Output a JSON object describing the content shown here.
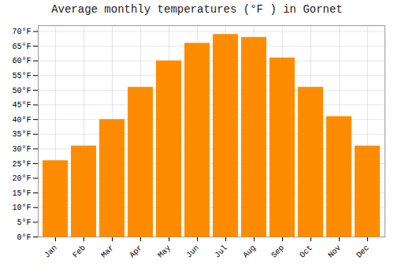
{
  "chart_data": {
    "type": "bar",
    "title": "Average monthly temperatures (°F ) in Gornet",
    "categories": [
      "Jan",
      "Feb",
      "Mar",
      "Apr",
      "May",
      "Jun",
      "Jul",
      "Aug",
      "Sep",
      "Oct",
      "Nov",
      "Dec"
    ],
    "values": [
      26,
      31,
      40,
      51,
      60,
      66,
      69,
      68,
      61,
      51,
      41,
      31
    ],
    "color": "#FF8C00",
    "ylim": [
      0,
      72
    ],
    "yticks": [
      {
        "value": 0,
        "label": "0°F"
      },
      {
        "value": 5,
        "label": "5°F"
      },
      {
        "value": 10,
        "label": "10°F"
      },
      {
        "value": 15,
        "label": "15°F"
      },
      {
        "value": 20,
        "label": "20°F"
      },
      {
        "value": 25,
        "label": "25°F"
      },
      {
        "value": 30,
        "label": "30°F"
      },
      {
        "value": 35,
        "label": "35°F"
      },
      {
        "value": 40,
        "label": "40°F"
      },
      {
        "value": 45,
        "label": "45°F"
      },
      {
        "value": 50,
        "label": "50°F"
      },
      {
        "value": 55,
        "label": "55°F"
      },
      {
        "value": 60,
        "label": "60°F"
      },
      {
        "value": 65,
        "label": "65°F"
      },
      {
        "value": 70,
        "label": "70°F"
      }
    ],
    "grid": true
  }
}
